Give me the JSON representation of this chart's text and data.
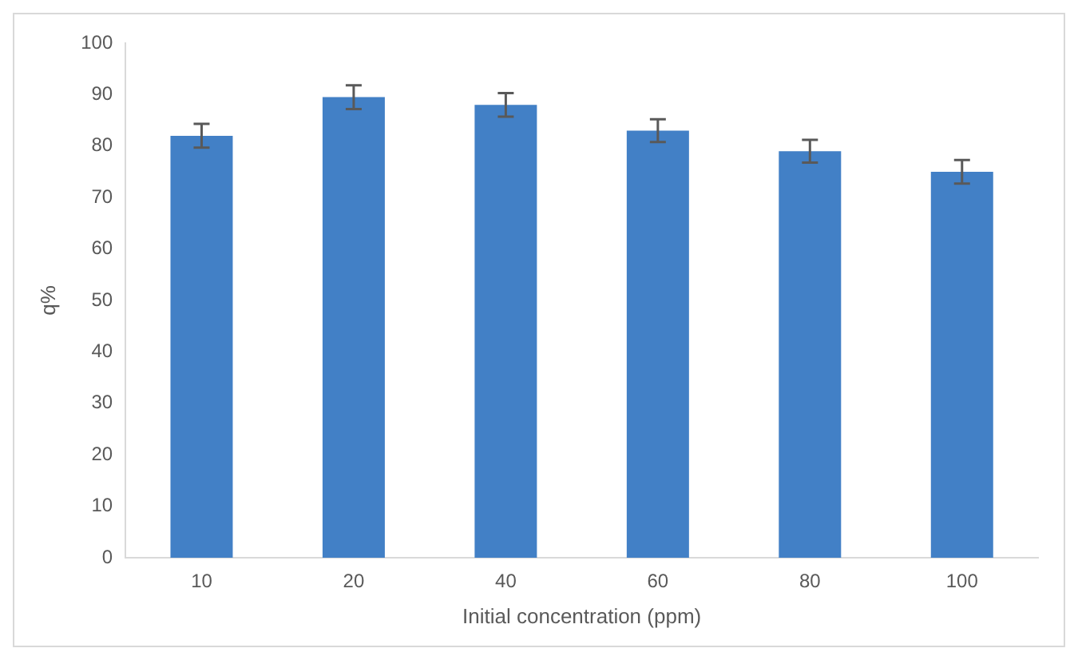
{
  "chart_data": {
    "type": "bar",
    "xlabel": "Initial concentration (ppm)",
    "ylabel": "q%",
    "categories": [
      "10",
      "20",
      "40",
      "60",
      "80",
      "100"
    ],
    "values": [
      82,
      89.5,
      88,
      83,
      79,
      75
    ],
    "errors": [
      2.3,
      2.3,
      2.3,
      2.2,
      2.2,
      2.3
    ],
    "color": "#4280c6",
    "ylim": [
      0,
      100
    ],
    "yticks": [
      0,
      10,
      20,
      30,
      40,
      50,
      60,
      70,
      80,
      90,
      100
    ],
    "grid": false,
    "legend": false
  }
}
